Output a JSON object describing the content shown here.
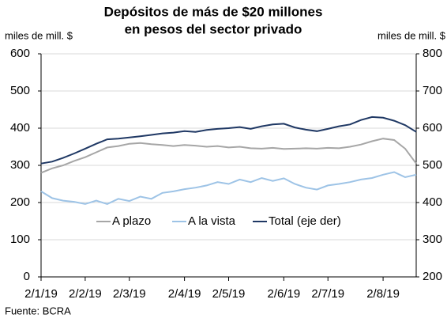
{
  "chart_data": {
    "type": "line",
    "title": [
      "Depósitos de más de $20 millones",
      "en pesos del sector privado"
    ],
    "ylabel": "miles de mill. $",
    "y2label": "miles de mill. $",
    "source": "Fuente: BCRA",
    "categories": [
      "2/1/19",
      null,
      null,
      null,
      "2/2/19",
      null,
      null,
      null,
      "2/3/19",
      null,
      null,
      null,
      null,
      "2/4/19",
      null,
      null,
      null,
      "2/5/19",
      null,
      null,
      null,
      null,
      "2/6/19",
      null,
      null,
      null,
      "2/7/19",
      null,
      null,
      null,
      null,
      "2/8/19",
      null,
      null,
      null
    ],
    "series": [
      {
        "name": "A plazo",
        "color": "#a6a6a6",
        "values": [
          280,
          292,
          300,
          312,
          322,
          335,
          348,
          352,
          358,
          360,
          357,
          355,
          352,
          355,
          353,
          350,
          352,
          348,
          350,
          346,
          345,
          347,
          344,
          345,
          346,
          345,
          347,
          346,
          350,
          356,
          365,
          372,
          368,
          345,
          305
        ]
      },
      {
        "name": "A la vista",
        "color": "#9dc3e6",
        "values": [
          230,
          212,
          205,
          202,
          196,
          205,
          196,
          210,
          204,
          216,
          210,
          226,
          230,
          236,
          240,
          246,
          255,
          250,
          262,
          255,
          266,
          258,
          265,
          250,
          240,
          235,
          246,
          250,
          255,
          262,
          266,
          275,
          282,
          268,
          275
        ]
      },
      {
        "name": "Total (eje der)",
        "color": "#1f3864",
        "axis": "y2",
        "values": [
          505,
          510,
          520,
          532,
          545,
          558,
          570,
          572,
          575,
          578,
          582,
          586,
          588,
          592,
          590,
          595,
          598,
          600,
          603,
          598,
          605,
          610,
          612,
          602,
          596,
          592,
          598,
          605,
          610,
          622,
          630,
          628,
          620,
          608,
          590
        ]
      }
    ],
    "ylim": [
      0,
      600
    ],
    "yticks": [
      0,
      100,
      200,
      300,
      400,
      500,
      600
    ],
    "y2lim": [
      200,
      800
    ],
    "y2ticks": [
      200,
      300,
      400,
      500,
      600,
      700,
      800
    ],
    "grid": true,
    "legend": "center"
  }
}
